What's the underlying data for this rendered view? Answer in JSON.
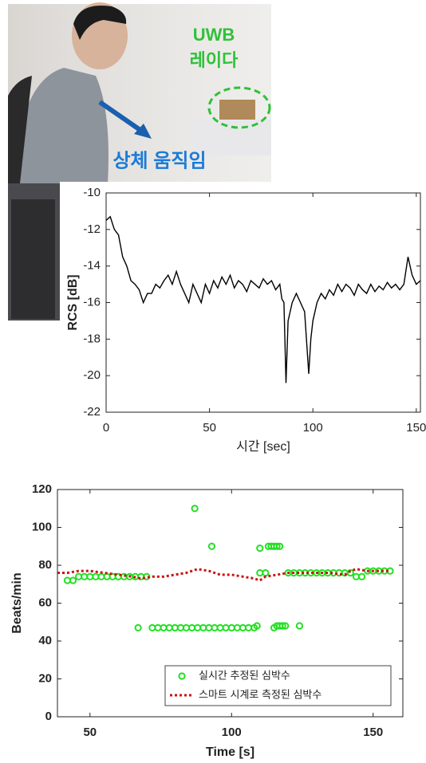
{
  "photo": {
    "labels": {
      "device": "UWB",
      "radar": "레이다",
      "motion": "상체 움직임"
    }
  },
  "chart_data": [
    {
      "type": "line",
      "xlabel": "시간 [sec]",
      "ylabel": "RCS [dB]",
      "color": "#000000",
      "x": [
        0,
        2,
        4,
        6,
        8,
        10,
        12,
        14,
        16,
        18,
        20,
        22,
        24,
        26,
        28,
        30,
        32,
        34,
        36,
        38,
        40,
        42,
        44,
        46,
        48,
        50,
        52,
        54,
        56,
        58,
        60,
        62,
        64,
        66,
        68,
        70,
        72,
        74,
        76,
        78,
        80,
        82,
        84,
        85,
        86,
        87,
        88,
        90,
        92,
        94,
        96,
        98,
        99,
        100,
        102,
        104,
        106,
        108,
        110,
        112,
        114,
        116,
        118,
        120,
        122,
        124,
        126,
        128,
        130,
        132,
        134,
        136,
        138,
        140,
        142,
        144,
        146,
        148,
        150,
        152
      ],
      "values": [
        -11.5,
        -11.3,
        -12.0,
        -12.3,
        -13.5,
        -14.0,
        -14.8,
        -15.0,
        -15.3,
        -16.0,
        -15.5,
        -15.5,
        -15.0,
        -15.2,
        -14.8,
        -14.5,
        -15.0,
        -14.3,
        -15.0,
        -15.5,
        -16.0,
        -15.0,
        -15.5,
        -16.0,
        -15.0,
        -15.5,
        -14.8,
        -15.2,
        -14.6,
        -15.0,
        -14.5,
        -15.2,
        -14.8,
        -15.0,
        -15.4,
        -14.8,
        -15.0,
        -15.2,
        -14.7,
        -15.0,
        -14.8,
        -15.3,
        -15.0,
        -15.8,
        -16.0,
        -20.4,
        -17.0,
        -16.0,
        -15.5,
        -16.0,
        -16.5,
        -19.9,
        -18.0,
        -17.0,
        -16.0,
        -15.5,
        -15.8,
        -15.3,
        -15.6,
        -15.0,
        -15.4,
        -15.0,
        -15.2,
        -15.6,
        -15.0,
        -15.3,
        -15.5,
        -15.0,
        -15.4,
        -15.1,
        -15.3,
        -14.9,
        -15.2,
        -15.0,
        -15.3,
        -15.0,
        -13.5,
        -14.5,
        -15.0,
        -14.8
      ],
      "xlim": [
        0,
        152
      ],
      "ylim": [
        -22,
        -10
      ],
      "xticks": [
        0,
        50,
        100,
        150
      ],
      "yticks": [
        -22,
        -20,
        -18,
        -16,
        -14,
        -12,
        -10
      ]
    },
    {
      "type": "scatter",
      "xlabel": "Time [s]",
      "ylabel": "Beats/min",
      "legend": "lower right",
      "xlim": [
        38.5,
        160.5
      ],
      "ylim": [
        0,
        120
      ],
      "xticks": [
        50,
        100,
        150
      ],
      "yticks": [
        0,
        20,
        40,
        60,
        80,
        100,
        120
      ],
      "series": [
        {
          "name": "실시간 추정된 심박수",
          "color": "#22e022",
          "kind": "markers",
          "x": [
            42,
            44,
            46,
            48,
            50,
            52,
            54,
            56,
            58,
            60,
            62,
            64,
            66,
            67,
            68,
            70,
            72,
            74,
            76,
            78,
            80,
            82,
            84,
            86,
            88,
            90,
            92,
            94,
            96,
            98,
            100,
            102,
            104,
            106,
            108,
            87,
            93,
            109,
            110,
            110,
            112,
            113,
            114,
            115,
            116,
            117,
            115,
            116,
            117,
            118,
            119,
            120,
            122,
            124,
            126,
            128,
            130,
            132,
            134,
            136,
            138,
            140,
            142,
            124,
            144,
            146,
            148,
            150,
            152,
            154,
            156
          ],
          "values": [
            72,
            72,
            74,
            74,
            74,
            74,
            74,
            74,
            74,
            74,
            74,
            74,
            74,
            47,
            74,
            74,
            47,
            47,
            47,
            47,
            47,
            47,
            47,
            47,
            47,
            47,
            47,
            47,
            47,
            47,
            47,
            47,
            47,
            47,
            47,
            110,
            90,
            48,
            89,
            76,
            76,
            90,
            90,
            90,
            90,
            90,
            47,
            48,
            48,
            48,
            48,
            76,
            76,
            76,
            76,
            76,
            76,
            76,
            76,
            76,
            76,
            76,
            76,
            48,
            74,
            74,
            77,
            77,
            77,
            77,
            77
          ]
        },
        {
          "name": "스마트 시계로 측정된 심박수",
          "color": "#cc1111",
          "kind": "line",
          "x": [
            38.5,
            42,
            46,
            50,
            55,
            60,
            65,
            68,
            72,
            76,
            80,
            84,
            88,
            92,
            96,
            100,
            104,
            108,
            110,
            112,
            116,
            120,
            125,
            130,
            135,
            140,
            142,
            144,
            148,
            152,
            156
          ],
          "values": [
            76,
            76,
            77,
            77,
            76,
            75,
            74,
            73,
            74,
            74,
            75,
            76,
            78,
            77,
            75,
            75,
            74,
            73,
            72,
            74,
            75,
            76,
            76,
            76,
            76,
            75,
            77,
            78,
            77,
            77,
            77
          ]
        }
      ]
    }
  ]
}
